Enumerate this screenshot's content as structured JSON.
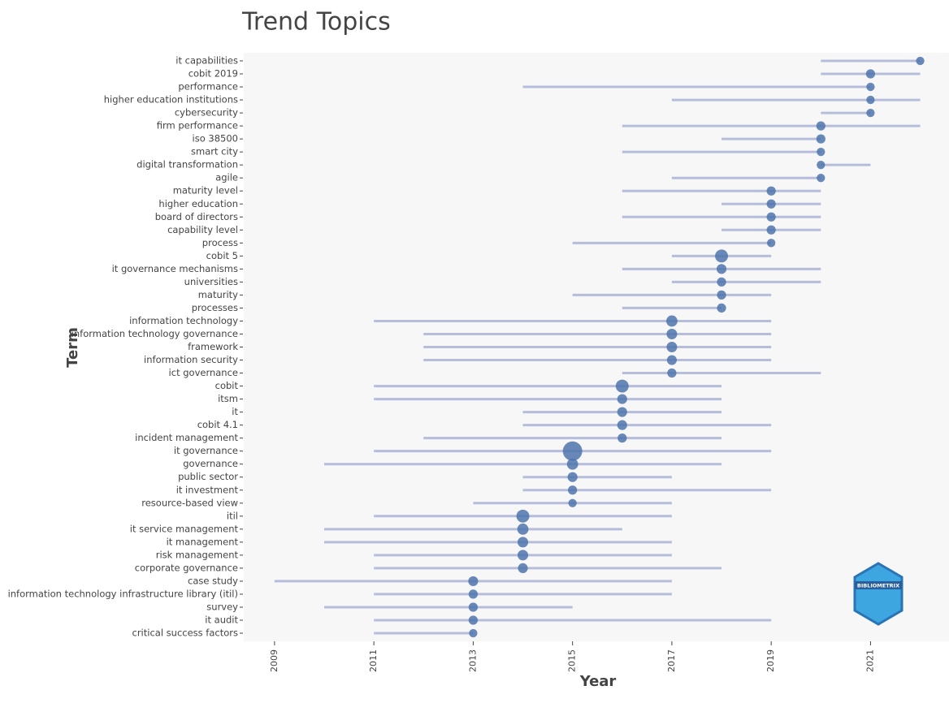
{
  "chart_data": {
    "type": "trend",
    "title": "Trend Topics",
    "x_label": "Year",
    "y_label": "Term",
    "logo": "BIBLIOMETRIX",
    "xlim": [
      2008.38,
      2022.58
    ],
    "xticks": [
      2009,
      2011,
      2013,
      2015,
      2017,
      2019,
      2021
    ],
    "line_color": "#a9b3d6",
    "dot_color": "#4f74ad",
    "categories": [
      "it capabilities",
      "cobit 2019",
      "performance",
      "higher education institutions",
      "cybersecurity",
      "firm performance",
      "iso 38500",
      "smart city",
      "digital transformation",
      "agile",
      "maturity level",
      "higher education",
      "board of directors",
      "capability level",
      "process",
      "cobit 5",
      "it governance mechanisms",
      "universities",
      "maturity",
      "processes",
      "information technology",
      "information technology governance",
      "framework",
      "information security",
      "ict governance",
      "cobit",
      "itsm",
      "it",
      "cobit 4.1",
      "incident management",
      "it governance",
      "governance",
      "public sector",
      "it investment",
      "resource-based view",
      "itil",
      "it service management",
      "it management",
      "risk management",
      "corporate governance",
      "case study",
      "information technology infrastructure library (itil)",
      "survey",
      "it audit",
      "critical success factors"
    ],
    "q1": [
      2020,
      2020,
      2014,
      2017,
      2020,
      2016,
      2018,
      2016,
      2020,
      2017,
      2016,
      2018,
      2016,
      2018,
      2015,
      2017,
      2016,
      2017,
      2015,
      2016,
      2011,
      2012,
      2012,
      2012,
      2016,
      2011,
      2011,
      2014,
      2014,
      2012,
      2011,
      2010,
      2014,
      2014,
      2013,
      2011,
      2010,
      2010,
      2011,
      2011,
      2009,
      2011,
      2010,
      2011,
      2011
    ],
    "median": [
      2022,
      2021,
      2021,
      2021,
      2021,
      2020,
      2020,
      2020,
      2020,
      2020,
      2019,
      2019,
      2019,
      2019,
      2019,
      2018,
      2018,
      2018,
      2018,
      2018,
      2017,
      2017,
      2017,
      2017,
      2017,
      2016,
      2016,
      2016,
      2016,
      2016,
      2015,
      2015,
      2015,
      2015,
      2015,
      2014,
      2014,
      2014,
      2014,
      2014,
      2013,
      2013,
      2013,
      2013,
      2013
    ],
    "q3": [
      2022,
      2022,
      2021,
      2022,
      2021,
      2022,
      2020,
      2020,
      2021,
      2020,
      2020,
      2020,
      2020,
      2020,
      2019,
      2019,
      2020,
      2020,
      2019,
      2018,
      2019,
      2019,
      2019,
      2019,
      2020,
      2018,
      2018,
      2018,
      2019,
      2018,
      2019,
      2018,
      2017,
      2019,
      2017,
      2017,
      2016,
      2017,
      2017,
      2018,
      2017,
      2017,
      2015,
      2019,
      2013
    ],
    "frequency": [
      5,
      6,
      5,
      5,
      5,
      6,
      6,
      5,
      5,
      5,
      6,
      6,
      6,
      6,
      5,
      12,
      7,
      6,
      6,
      6,
      9,
      8,
      8,
      7,
      6,
      12,
      7,
      7,
      7,
      6,
      27,
      9,
      7,
      6,
      5,
      12,
      9,
      8,
      8,
      7,
      7,
      6,
      6,
      6,
      5
    ]
  }
}
